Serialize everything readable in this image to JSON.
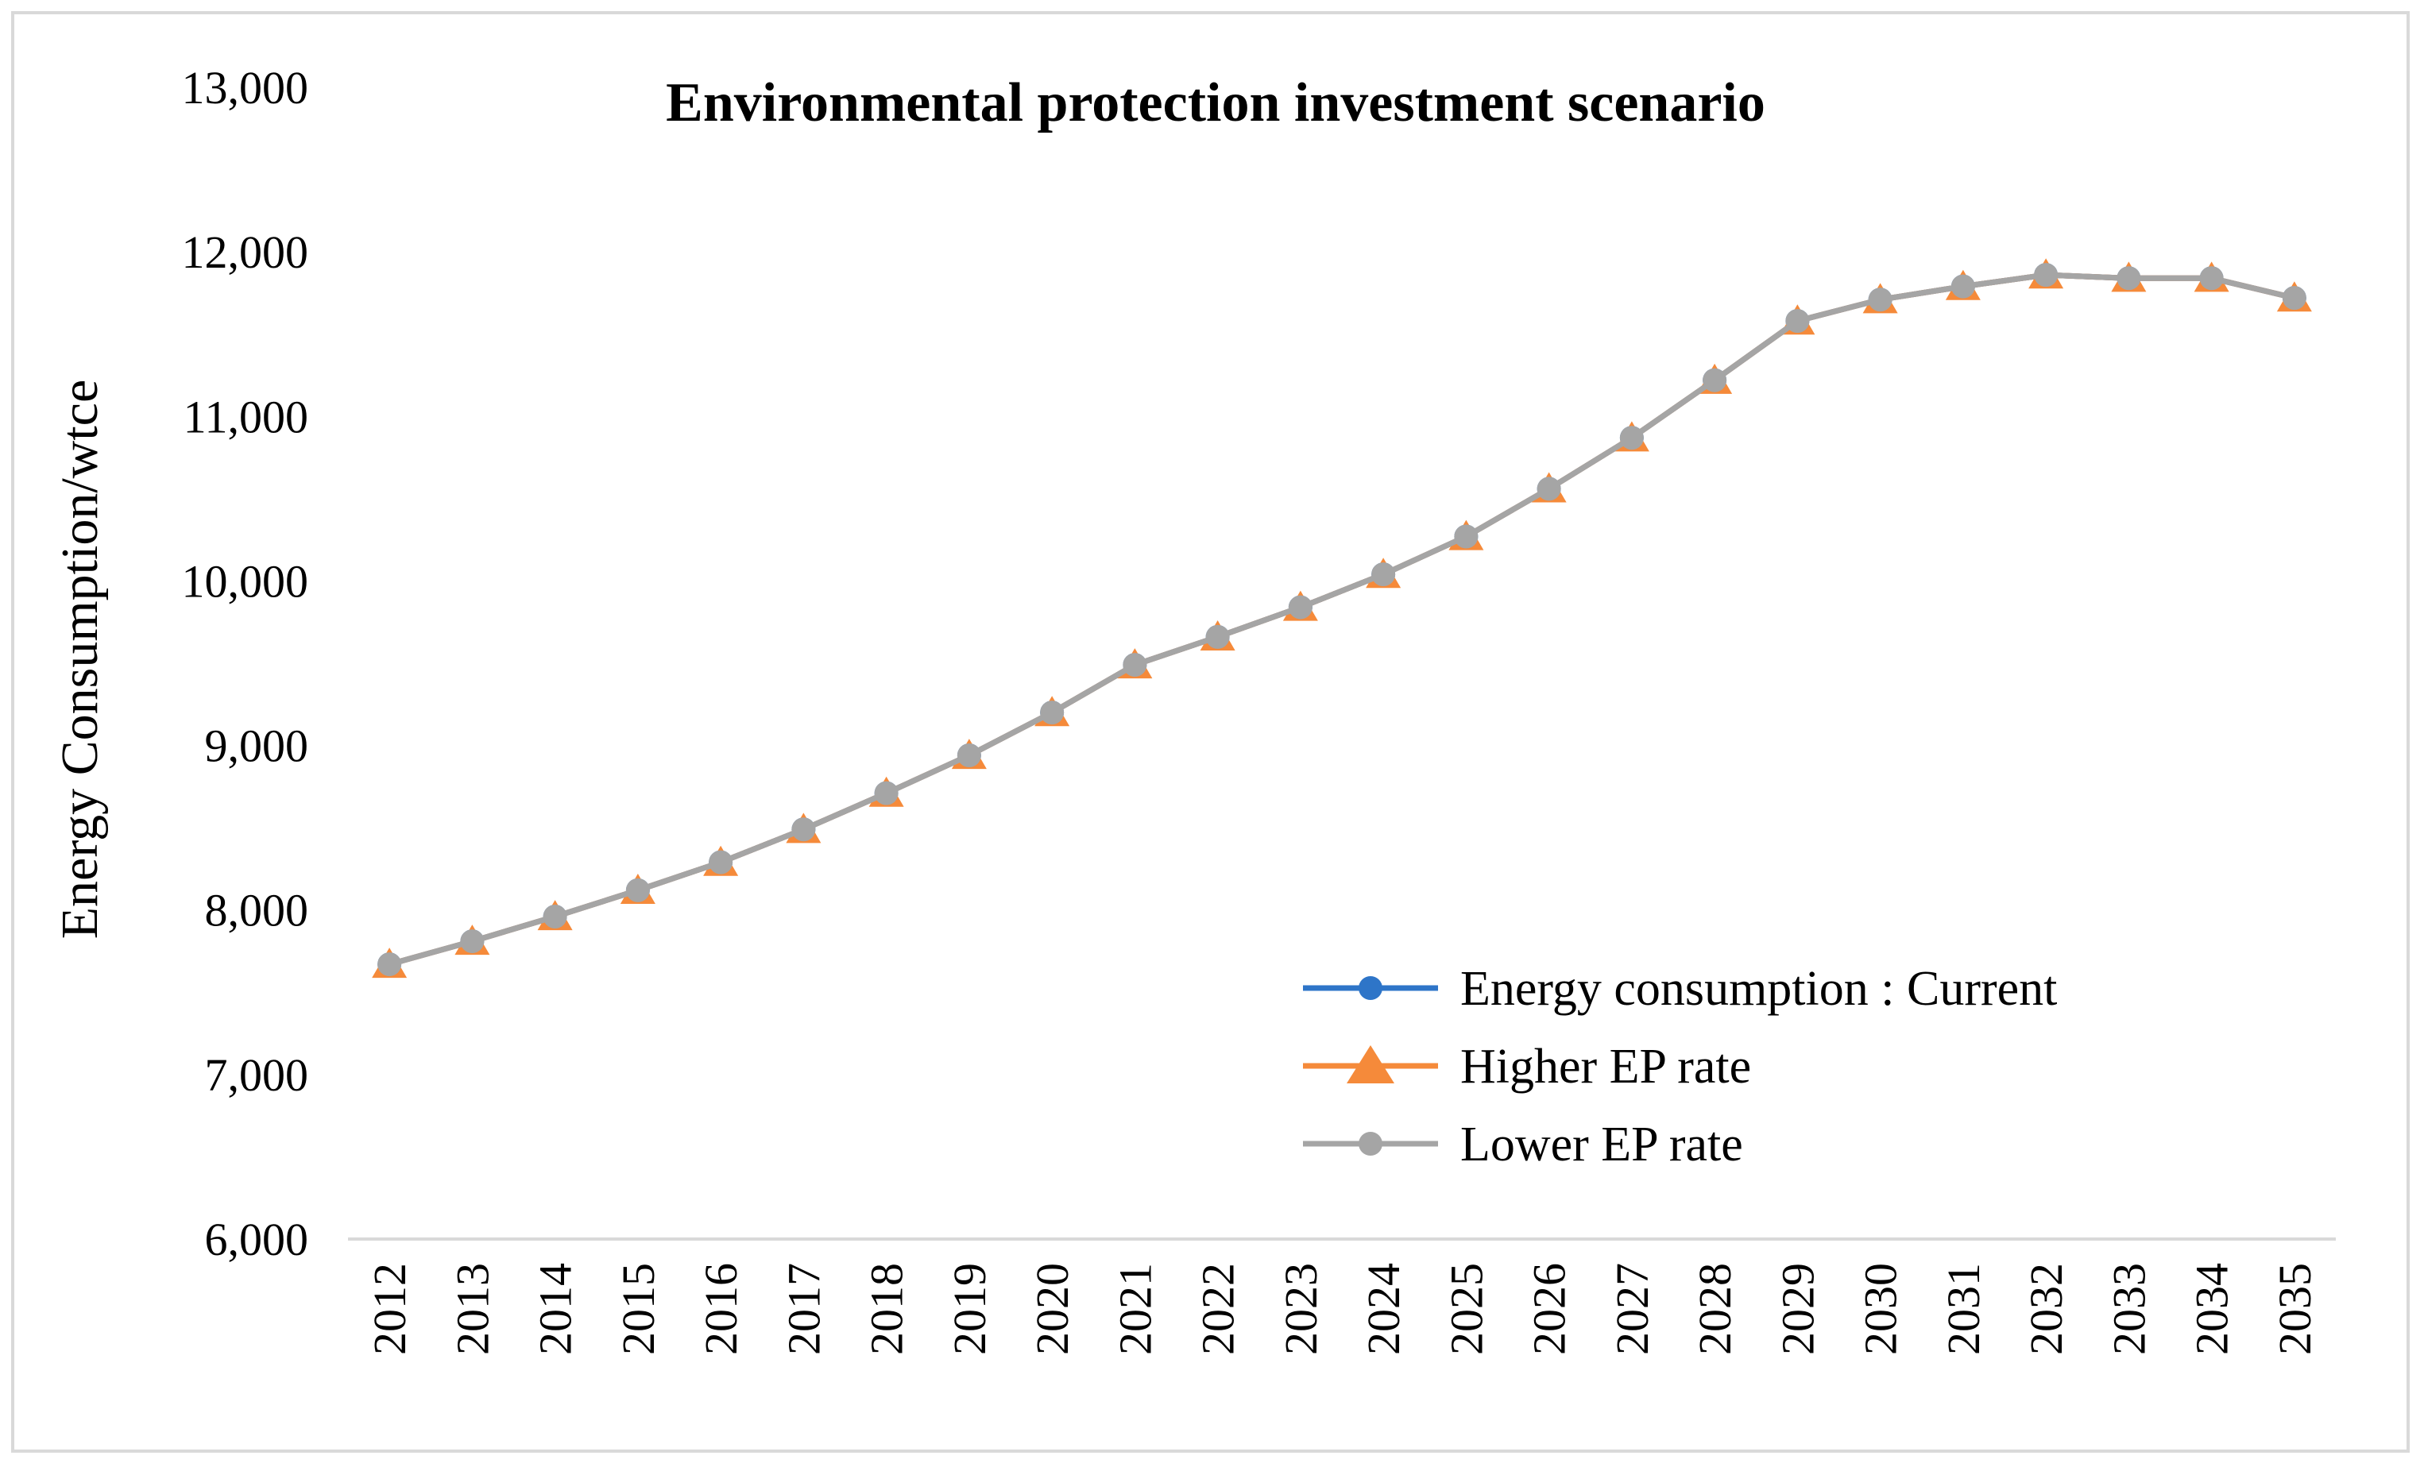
{
  "chart_data": {
    "type": "line",
    "title": "Environmental protection investment scenario",
    "xlabel": "",
    "ylabel": "Energy Consumption/wtce",
    "ylim": [
      6000,
      13000
    ],
    "yticks": [
      "6,000",
      "7,000",
      "8,000",
      "9,000",
      "10,000",
      "11,000",
      "12,000",
      "13,000"
    ],
    "ytick_values": [
      6000,
      7000,
      8000,
      9000,
      10000,
      11000,
      12000,
      13000
    ],
    "categories": [
      "2012",
      "2013",
      "2014",
      "2015",
      "2016",
      "2017",
      "2018",
      "2019",
      "2020",
      "2021",
      "2022",
      "2023",
      "2024",
      "2025",
      "2026",
      "2027",
      "2028",
      "2029",
      "2030",
      "2031",
      "2032",
      "2033",
      "2034",
      "2035"
    ],
    "grid": false,
    "legend_position": "bottom-right",
    "series": [
      {
        "name": "Energy consumption : Current",
        "color": "#2e75c8",
        "marker": "circle",
        "values": [
          7670,
          7810,
          7960,
          8120,
          8290,
          8490,
          8710,
          8940,
          9200,
          9490,
          9660,
          9840,
          10040,
          10270,
          10560,
          10870,
          11220,
          11580,
          11710,
          11790,
          11860,
          11840,
          11840,
          11720
        ]
      },
      {
        "name": "Higher EP rate",
        "color": "#f58a3a",
        "marker": "triangle",
        "values": [
          7670,
          7810,
          7960,
          8120,
          8290,
          8490,
          8710,
          8940,
          9200,
          9490,
          9660,
          9840,
          10040,
          10270,
          10560,
          10870,
          11220,
          11580,
          11710,
          11790,
          11860,
          11840,
          11840,
          11720
        ]
      },
      {
        "name": "Lower EP rate",
        "color": "#a5a5a5",
        "marker": "circle",
        "values": [
          7670,
          7810,
          7960,
          8120,
          8290,
          8490,
          8710,
          8940,
          9200,
          9490,
          9660,
          9840,
          10040,
          10270,
          10560,
          10870,
          11220,
          11580,
          11710,
          11790,
          11860,
          11840,
          11840,
          11720
        ]
      }
    ]
  }
}
